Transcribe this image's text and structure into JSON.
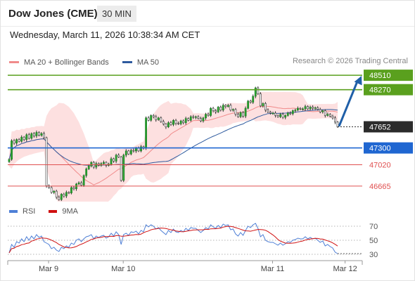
{
  "header": {
    "title": "Dow Jones (CME)",
    "timeframe": "30 MIN"
  },
  "datetime": "Wednesday, March 11, 2026 10:38:34 AM CET",
  "credit": "Research © 2026 Trading Central",
  "legend": {
    "ma20": "MA 20 + Bollinger Bands",
    "ma50": "MA 50",
    "rsi": "RSI",
    "rsi_ma": "9MA"
  },
  "colors": {
    "ma20": "#f08a8a",
    "ma50": "#2e5a9e",
    "bands_fill": "#fde0e0",
    "resistance": "#5aa01e",
    "support": "#1f66d1",
    "minor_support": "#e05050",
    "target_arrow": "#1f5fa8",
    "last_price": "#2b2b2b",
    "rsi": "#4e7fd6",
    "rsi_ma": "#d01010"
  },
  "chart_data": [
    {
      "type": "candlestick",
      "x_labels": [
        "Mar 9",
        "Mar 10",
        "Mar 11",
        "Mar 12"
      ],
      "ylim": [
        46430,
        48640
      ],
      "levels": [
        {
          "value": 48510,
          "label": "48510",
          "kind": "resistance"
        },
        {
          "value": 48270,
          "label": "48270",
          "kind": "resistance"
        },
        {
          "value": 47300,
          "label": "47300",
          "kind": "support"
        },
        {
          "value": 47020,
          "label": "47020",
          "kind": "minor-support"
        },
        {
          "value": 46665,
          "label": "46665",
          "kind": "minor-support"
        }
      ],
      "last_price": {
        "value": 47652,
        "label": "47652"
      },
      "target_arrow": {
        "from": 47660,
        "to": 48500
      },
      "close": [
        47110,
        47420,
        47380,
        47440,
        47410,
        47480,
        47440,
        47520,
        47460,
        47540,
        47500,
        47560,
        47510,
        47540,
        47470,
        46670,
        46640,
        46560,
        46580,
        46480,
        46440,
        46530,
        46500,
        46560,
        46550,
        46640,
        46620,
        46700,
        46720,
        46680,
        46840,
        46950,
        47000,
        47060,
        46980,
        47040,
        47010,
        47040,
        47060,
        47010,
        47030,
        47120,
        47080,
        47180,
        47150,
        46760,
        47180,
        47250,
        47200,
        47260,
        47250,
        47300,
        47250,
        47320,
        47300,
        47800,
        47760,
        47840,
        47820,
        47770,
        47800,
        47740,
        47700,
        47650,
        47720,
        47690,
        47760,
        47710,
        47700,
        47750,
        47720,
        47790,
        47760,
        47820,
        47810,
        47820,
        47790,
        47750,
        47800,
        47860,
        47840,
        47960,
        47920,
        47900,
        47980,
        47930,
        48010,
        47990,
        48010,
        47930,
        47940,
        47860,
        47820,
        47890,
        47830,
        47960,
        48080,
        48060,
        48160,
        48300,
        48200,
        48000,
        48040,
        47930,
        47900,
        47880,
        47880,
        47840,
        47820,
        47860,
        47810,
        47840,
        47880,
        47870,
        47920,
        47930,
        47960,
        47950,
        47950,
        47990,
        47950,
        47980,
        47960,
        47970,
        47940,
        47900,
        47920,
        47840,
        47860,
        47830,
        47800,
        47730,
        47652
      ]
    },
    {
      "type": "line",
      "name": "RSI",
      "ylim": [
        25,
        80
      ],
      "ticks": [
        70,
        50,
        30
      ],
      "values": [
        32,
        44,
        40,
        48,
        46,
        52,
        48,
        55,
        50,
        56,
        52,
        58,
        54,
        56,
        48,
        46,
        44,
        38,
        40,
        36,
        34,
        40,
        38,
        42,
        40,
        46,
        44,
        50,
        52,
        48,
        52,
        55,
        56,
        58,
        52,
        56,
        54,
        56,
        57,
        53,
        55,
        60,
        56,
        62,
        58,
        44,
        58,
        60,
        57,
        62,
        61,
        63,
        59,
        64,
        62,
        72,
        69,
        72,
        70,
        66,
        68,
        64,
        61,
        58,
        64,
        61,
        66,
        62,
        61,
        64,
        62,
        67,
        64,
        68,
        67,
        67,
        64,
        61,
        64,
        68,
        66,
        72,
        69,
        67,
        71,
        68,
        73,
        71,
        72,
        65,
        66,
        59,
        56,
        61,
        57,
        64,
        70,
        68,
        72,
        74,
        67,
        55,
        58,
        50,
        48,
        47,
        47,
        45,
        43,
        46,
        43,
        45,
        48,
        47,
        50,
        51,
        53,
        52,
        52,
        55,
        52,
        54,
        52,
        53,
        50,
        47,
        49,
        42,
        44,
        41,
        39,
        33,
        31
      ]
    }
  ]
}
